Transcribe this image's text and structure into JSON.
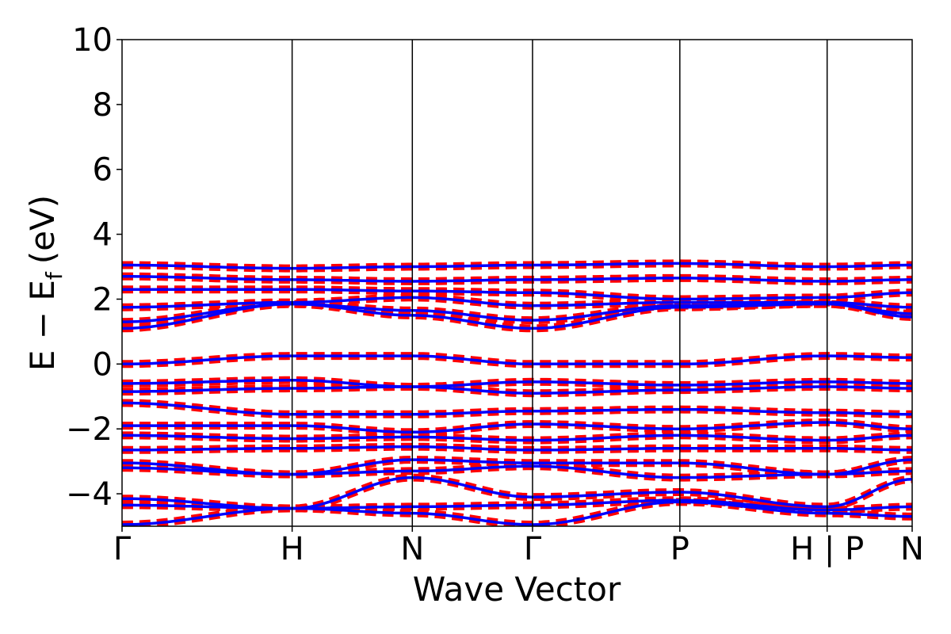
{
  "chart_data": {
    "type": "line",
    "title": "",
    "xlabel": "Wave Vector",
    "ylabel": "E − E",
    "ylabel_subscript": "f",
    "ylabel_unit": "(eV)",
    "ylim": [
      -5,
      10
    ],
    "yticks": [
      -4,
      -2,
      0,
      2,
      4,
      6,
      8,
      10
    ],
    "ytick_labels": [
      "−4",
      "−2",
      "0",
      "2",
      "4",
      "6",
      "8",
      "10"
    ],
    "xlim": [
      0,
      3.66
    ],
    "kpoints": [
      {
        "x": 0.0,
        "label": "Γ"
      },
      {
        "x": 0.8667,
        "label": "H"
      },
      {
        "x": 1.4792,
        "label": "N"
      },
      {
        "x": 2.0917,
        "label": "Γ"
      },
      {
        "x": 2.8423,
        "label": "P"
      },
      {
        "x": 3.5929,
        "label": "H | P"
      },
      {
        "x": 4.0262,
        "label": "N"
      }
    ],
    "vlines": [
      0.8667,
      1.4792,
      2.0917,
      2.8423,
      3.5929
    ],
    "colors": {
      "bands": "#0000ff",
      "projection": "#ff0000",
      "frame": "#000000"
    },
    "series": [
      {
        "values": [
          [
            0.0,
            1.1
          ],
          [
            0.87,
            1.85
          ],
          [
            1.48,
            1.5
          ],
          [
            2.09,
            1.1
          ],
          [
            2.84,
            1.75
          ],
          [
            3.59,
            1.85
          ],
          [
            4.03,
            1.45
          ]
        ]
      },
      {
        "values": [
          [
            0.0,
            1.3
          ],
          [
            0.87,
            1.85
          ],
          [
            1.48,
            1.65
          ],
          [
            2.09,
            1.35
          ],
          [
            2.84,
            1.8
          ],
          [
            3.59,
            1.85
          ],
          [
            4.03,
            1.55
          ]
        ]
      },
      {
        "values": [
          [
            0.0,
            1.75
          ],
          [
            0.87,
            1.9
          ],
          [
            1.48,
            2.05
          ],
          [
            2.09,
            1.8
          ],
          [
            2.84,
            1.9
          ],
          [
            3.59,
            1.9
          ],
          [
            4.03,
            1.75
          ]
        ]
      },
      {
        "values": [
          [
            0.0,
            2.3
          ],
          [
            0.87,
            2.3
          ],
          [
            1.48,
            2.25
          ],
          [
            2.09,
            2.2
          ],
          [
            2.84,
            2.0
          ],
          [
            3.59,
            2.05
          ],
          [
            4.03,
            2.2
          ]
        ]
      },
      {
        "values": [
          [
            0.0,
            2.7
          ],
          [
            0.87,
            2.6
          ],
          [
            1.48,
            2.55
          ],
          [
            2.09,
            2.6
          ],
          [
            2.84,
            2.65
          ],
          [
            3.59,
            2.55
          ],
          [
            4.03,
            2.6
          ]
        ]
      },
      {
        "values": [
          [
            0.0,
            3.05
          ],
          [
            0.87,
            2.95
          ],
          [
            1.48,
            3.0
          ],
          [
            2.09,
            3.05
          ],
          [
            2.84,
            3.1
          ],
          [
            3.59,
            3.0
          ],
          [
            4.03,
            3.05
          ]
        ]
      },
      {
        "values": [
          [
            0.0,
            0.0
          ],
          [
            0.87,
            0.25
          ],
          [
            1.48,
            0.25
          ],
          [
            2.09,
            0.0
          ],
          [
            2.84,
            0.0
          ],
          [
            3.59,
            0.25
          ],
          [
            4.03,
            0.2
          ]
        ]
      },
      {
        "values": [
          [
            0.0,
            -0.6
          ],
          [
            0.87,
            -0.5
          ],
          [
            1.48,
            -0.7
          ],
          [
            2.09,
            -0.55
          ],
          [
            2.84,
            -0.65
          ],
          [
            3.59,
            -0.55
          ],
          [
            4.03,
            -0.6
          ]
        ]
      },
      {
        "values": [
          [
            0.0,
            -0.85
          ],
          [
            0.87,
            -0.75
          ],
          [
            1.48,
            -0.7
          ],
          [
            2.09,
            -0.9
          ],
          [
            2.84,
            -0.8
          ],
          [
            3.59,
            -0.7
          ],
          [
            4.03,
            -0.75
          ]
        ]
      },
      {
        "values": [
          [
            0.0,
            -1.2
          ],
          [
            0.87,
            -1.55
          ],
          [
            1.48,
            -1.55
          ],
          [
            2.09,
            -1.45
          ],
          [
            2.84,
            -1.4
          ],
          [
            3.59,
            -1.5
          ],
          [
            4.03,
            -1.55
          ]
        ]
      },
      {
        "values": [
          [
            0.0,
            -1.9
          ],
          [
            0.87,
            -1.9
          ],
          [
            1.48,
            -2.1
          ],
          [
            2.09,
            -1.85
          ],
          [
            2.84,
            -2.0
          ],
          [
            3.59,
            -1.8
          ],
          [
            4.03,
            -2.0
          ]
        ]
      },
      {
        "values": [
          [
            0.0,
            -2.2
          ],
          [
            0.87,
            -2.3
          ],
          [
            1.48,
            -2.25
          ],
          [
            2.09,
            -2.35
          ],
          [
            2.84,
            -2.2
          ],
          [
            3.59,
            -2.35
          ],
          [
            4.03,
            -2.2
          ]
        ]
      },
      {
        "values": [
          [
            0.0,
            -2.65
          ],
          [
            0.87,
            -2.6
          ],
          [
            1.48,
            -2.55
          ],
          [
            2.09,
            -2.65
          ],
          [
            2.84,
            -2.6
          ],
          [
            3.59,
            -2.6
          ],
          [
            4.03,
            -2.65
          ]
        ]
      },
      {
        "values": [
          [
            0.0,
            -3.05
          ],
          [
            0.87,
            -3.4
          ],
          [
            1.48,
            -2.95
          ],
          [
            2.09,
            -3.05
          ],
          [
            2.84,
            -3.05
          ],
          [
            3.59,
            -3.4
          ],
          [
            4.03,
            -2.95
          ]
        ]
      },
      {
        "values": [
          [
            0.0,
            -3.2
          ],
          [
            0.87,
            -3.4
          ],
          [
            1.48,
            -3.3
          ],
          [
            2.09,
            -3.15
          ],
          [
            2.84,
            -3.5
          ],
          [
            3.59,
            -3.4
          ],
          [
            4.03,
            -3.3
          ]
        ]
      },
      {
        "values": [
          [
            0.0,
            -4.15
          ],
          [
            0.87,
            -4.45
          ],
          [
            1.48,
            -3.5
          ],
          [
            2.09,
            -4.1
          ],
          [
            2.84,
            -3.95
          ],
          [
            3.59,
            -4.4
          ],
          [
            4.03,
            -3.55
          ]
        ]
      },
      {
        "values": [
          [
            0.0,
            -4.35
          ],
          [
            0.87,
            -4.45
          ],
          [
            1.48,
            -4.4
          ],
          [
            2.09,
            -4.35
          ],
          [
            2.84,
            -4.2
          ],
          [
            3.59,
            -4.5
          ],
          [
            4.03,
            -4.4
          ]
        ]
      },
      {
        "values": [
          [
            0.0,
            -4.95
          ],
          [
            0.87,
            -4.45
          ],
          [
            1.48,
            -4.6
          ],
          [
            2.09,
            -4.95
          ],
          [
            2.84,
            -4.25
          ],
          [
            3.59,
            -4.6
          ],
          [
            4.03,
            -4.7
          ]
        ]
      }
    ]
  }
}
